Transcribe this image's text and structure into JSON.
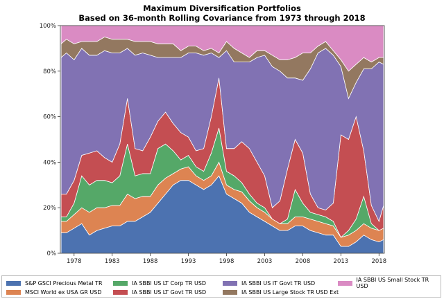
{
  "chart_data": {
    "type": "area",
    "stacked": true,
    "normalized_percent": true,
    "title": "Maximum Diversification Portfolios",
    "subtitle": "Based on 36-month Rolling Covariance from 1973 through 2018",
    "xlabel": "",
    "ylabel": "",
    "xlim": [
      1976.2,
      2018.7
    ],
    "ylim": [
      0,
      100
    ],
    "x_ticks": [
      "1978",
      "1983",
      "1988",
      "1993",
      "1998",
      "2003",
      "2008",
      "2013",
      "2018"
    ],
    "y_ticks": [
      "0%",
      "20%",
      "40%",
      "60%",
      "80%",
      "100%"
    ],
    "grid": false,
    "legend_position": "bottom",
    "x": [
      1976.3,
      1977,
      1978,
      1979,
      1980,
      1981,
      1982,
      1983,
      1984,
      1985,
      1986,
      1987,
      1988,
      1989,
      1990,
      1991,
      1992,
      1993,
      1994,
      1995,
      1996,
      1997,
      1998,
      1999,
      2000,
      2001,
      2002,
      2003,
      2004,
      2005,
      2006,
      2007,
      2008,
      2009,
      2010,
      2011,
      2012,
      2013,
      2014,
      2015,
      2016,
      2017,
      2018,
      2018.6
    ],
    "series": [
      {
        "name": "S&P GSCI Precious Metal TR",
        "color": "#4c72b0",
        "values": [
          9,
          9,
          11,
          13,
          8,
          10,
          11,
          12,
          12,
          14,
          14,
          16,
          18,
          22,
          26,
          30,
          32,
          32,
          30,
          28,
          30,
          34,
          26,
          24,
          22,
          18,
          16,
          14,
          12,
          10,
          10,
          12,
          12,
          10,
          9,
          8,
          8,
          3,
          3,
          5,
          8,
          6,
          5,
          6
        ]
      },
      {
        "name": "MSCI World ex USA GR USD",
        "color": "#dd8452",
        "values": [
          5,
          5,
          6,
          7,
          10,
          10,
          9,
          9,
          9,
          12,
          10,
          9,
          7,
          8,
          7,
          5,
          5,
          6,
          4,
          4,
          4,
          6,
          4,
          4,
          5,
          5,
          4,
          4,
          3,
          3,
          3,
          4,
          4,
          5,
          5,
          5,
          4,
          4,
          5,
          5,
          5,
          5,
          5,
          5
        ]
      },
      {
        "name": "IA SBBI US LT Corp TR USD",
        "color": "#55a868",
        "values": [
          2,
          2,
          5,
          14,
          12,
          12,
          12,
          10,
          13,
          22,
          10,
          10,
          10,
          16,
          15,
          10,
          4,
          5,
          4,
          4,
          10,
          15,
          6,
          6,
          4,
          3,
          2,
          2,
          0,
          0,
          2,
          12,
          6,
          3,
          3,
          3,
          2,
          0,
          2,
          5,
          12,
          2,
          0,
          0
        ]
      },
      {
        "name": "IA SBBI US LT Govt TR USD",
        "color": "#c44e52",
        "values": [
          10,
          10,
          10,
          9,
          14,
          13,
          10,
          9,
          14,
          20,
          12,
          10,
          16,
          12,
          14,
          12,
          12,
          8,
          7,
          10,
          16,
          22,
          10,
          12,
          18,
          20,
          18,
          14,
          5,
          10,
          22,
          22,
          22,
          8,
          3,
          3,
          8,
          45,
          40,
          45,
          20,
          8,
          4,
          10
        ]
      },
      {
        "name": "IA SBBI US IT Govt TR USD",
        "color": "#8172b3",
        "values": [
          60,
          62,
          53,
          47,
          43,
          42,
          47,
          48,
          40,
          22,
          41,
          43,
          36,
          28,
          24,
          29,
          33,
          37,
          43,
          41,
          28,
          9,
          43,
          38,
          35,
          38,
          46,
          53,
          62,
          57,
          40,
          27,
          32,
          55,
          68,
          71,
          65,
          30,
          18,
          15,
          36,
          60,
          70,
          62
        ]
      },
      {
        "name": "IA SBBI US Large Stock TR USD Ext",
        "color": "#937860",
        "values": [
          6,
          6,
          7,
          3,
          6,
          6,
          6,
          6,
          6,
          4,
          6,
          5,
          6,
          6,
          6,
          6,
          3,
          3,
          3,
          2,
          2,
          2,
          4,
          6,
          4,
          2,
          3,
          2,
          5,
          5,
          8,
          9,
          12,
          7,
          3,
          3,
          2,
          3,
          12,
          8,
          5,
          3,
          2,
          3
        ]
      },
      {
        "name": "IA SBBI US Small Stock TR USD",
        "color": "#da8bc3",
        "values": [
          8,
          6,
          8,
          7,
          7,
          7,
          5,
          6,
          6,
          6,
          7,
          7,
          7,
          8,
          8,
          8,
          11,
          9,
          9,
          11,
          10,
          12,
          7,
          10,
          12,
          14,
          11,
          11,
          13,
          15,
          15,
          14,
          12,
          12,
          9,
          7,
          11,
          15,
          20,
          17,
          14,
          16,
          14,
          14
        ]
      }
    ]
  }
}
